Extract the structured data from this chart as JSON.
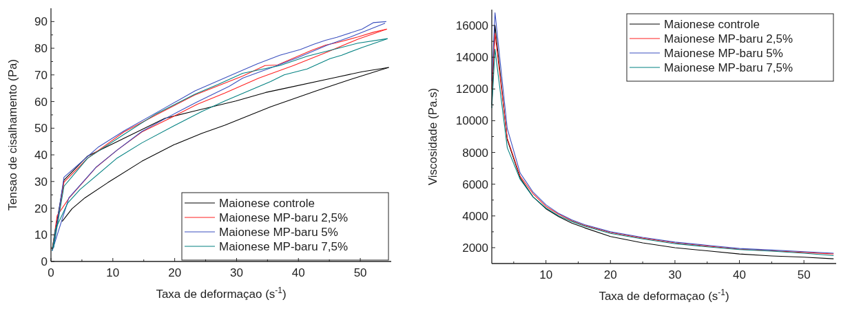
{
  "chart_data": [
    {
      "type": "line",
      "xlabel": "Taxa de deformaçao (s$^{-1}$)",
      "ylabel": "Tensao de cisalhamento (Pa)",
      "xlim": [
        0,
        55
      ],
      "ylim": [
        0,
        95
      ],
      "xticks": [
        0,
        {
          "value": 5,
          "label": null
        },
        10,
        {
          "value": 15,
          "label": null
        },
        20,
        {
          "value": 25,
          "label": null
        },
        30,
        {
          "value": 35,
          "label": null
        },
        40,
        {
          "value": 45,
          "label": null
        },
        50
      ],
      "yticks": [
        0,
        {
          "value": 5,
          "label": null
        },
        10,
        {
          "value": 15,
          "label": null
        },
        20,
        {
          "value": 25,
          "label": null
        },
        30,
        {
          "value": 35,
          "label": null
        },
        40,
        {
          "value": 45,
          "label": null
        },
        50,
        {
          "value": 55,
          "label": null
        },
        60,
        {
          "value": 65,
          "label": null
        },
        70,
        {
          "value": 75,
          "label": null
        },
        80,
        {
          "value": 85,
          "label": null
        },
        90
      ],
      "legend": "bottom right",
      "grid": false,
      "line_style": "solid",
      "series": [
        {
          "name": "Maionese controle",
          "color": "#000000",
          "x": [
            1.8,
            3.4,
            5.5,
            9.2,
            14.7,
            19.9,
            24.4,
            28.1,
            35.5,
            42.9,
            48.4,
            54.6
          ],
          "values": [
            15.0,
            19.8,
            23.9,
            29.6,
            37.6,
            43.8,
            48.1,
            51.1,
            58.0,
            64.0,
            68.3,
            72.8
          ]
        },
        {
          "color": "#000000",
          "x": [
            0.2,
            2.1,
            5.9,
            11.8,
            18.4,
            22.9,
            29.9,
            34.7,
            37.7,
            45.9,
            50.3,
            54.6
          ],
          "values": [
            4.7,
            30.5,
            39.5,
            46.2,
            53.7,
            56.3,
            60.2,
            63.4,
            64.9,
            69.0,
            71.2,
            72.8
          ]
        },
        {
          "name": "Maionese MP-baru 2,5%",
          "color": "#ff2020",
          "x": [
            0.2,
            1.0,
            2.9,
            7.3,
            10.7,
            14.7,
            19.2,
            23.6,
            28.1,
            33.6,
            39.2,
            44.7,
            49.6,
            54.3
          ],
          "values": [
            4.5,
            17.2,
            23.7,
            35.3,
            41.8,
            48.6,
            53.7,
            58.9,
            63.2,
            68.8,
            73.5,
            78.6,
            83.4,
            87.2
          ]
        },
        {
          "color": "#ff2020",
          "x": [
            0.4,
            2.1,
            5.9,
            11.8,
            17.0,
            23.2,
            31.0,
            34.6,
            36.6,
            42.1,
            44.4,
            46.2,
            49.6,
            52.1,
            54.3
          ],
          "values": [
            5.5,
            29.7,
            38.7,
            48.6,
            55.0,
            62.4,
            69.6,
            73.5,
            73.7,
            79.2,
            81.2,
            82.1,
            84.2,
            86.0,
            87.2
          ]
        },
        {
          "name": "Maionese MP-baru 5%",
          "color": "#3a4fbf",
          "x": [
            0.2,
            2.9,
            7.3,
            10.7,
            14.7,
            19.2,
            23.6,
            28.8,
            31.0,
            35.5,
            39.9,
            44.7,
            48.4,
            54.0
          ],
          "values": [
            4.0,
            23.9,
            35.4,
            41.8,
            48.8,
            54.5,
            59.8,
            65.7,
            68.8,
            72.6,
            76.5,
            81.2,
            84.2,
            89.4
          ]
        },
        {
          "color": "#3a4fbf",
          "x": [
            0.4,
            2.1,
            7.7,
            11.8,
            18.4,
            23.3,
            28.8,
            33.3,
            37.0,
            40.3,
            42.5,
            44.4,
            46.2,
            50.3,
            52.1,
            54.2
          ],
          "values": [
            5.2,
            31.6,
            43.0,
            49.0,
            57.6,
            64.0,
            69.6,
            74.1,
            77.4,
            79.5,
            81.5,
            83.0,
            84.1,
            87.2,
            89.6,
            90.0
          ]
        },
        {
          "name": "Maionese MP-baru 7,5%",
          "color": "#008080",
          "x": [
            0.2,
            0.7,
            2.7,
            4.7,
            10.7,
            14.7,
            19.9,
            24.4,
            28.1,
            35.5,
            37.7,
            41.4,
            45.1,
            47.0,
            50.3,
            54.4
          ],
          "values": [
            4.0,
            12.0,
            21.9,
            27.0,
            38.8,
            44.5,
            50.9,
            56.3,
            60.2,
            67.5,
            70.0,
            72.2,
            76.1,
            77.4,
            80.3,
            83.6
          ]
        },
        {
          "color": "#008080",
          "x": [
            0.4,
            2.1,
            5.9,
            11.8,
            17.0,
            23.3,
            27.0,
            31.0,
            37.0,
            41.4,
            46.6,
            49.6,
            54.4
          ],
          "values": [
            5.0,
            28.2,
            38.7,
            47.7,
            55.4,
            62.8,
            66.4,
            70.6,
            73.5,
            77.0,
            80.1,
            81.9,
            83.6
          ]
        }
      ]
    },
    {
      "type": "line",
      "xlabel": "Taxa de deformaçao (s$^{-1}$)",
      "ylabel": "Viscosidade (Pa.s)",
      "xlim": [
        1.6,
        55
      ],
      "ylim": [
        1000,
        17000
      ],
      "xticks": [
        {
          "value": 5,
          "label": null
        },
        10,
        {
          "value": 15,
          "label": null
        },
        20,
        {
          "value": 25,
          "label": null
        },
        30,
        {
          "value": 35,
          "label": null
        },
        40,
        {
          "value": 45,
          "label": null
        },
        50
      ],
      "yticks": [
        2000,
        {
          "value": 3000,
          "label": null
        },
        4000,
        {
          "value": 5000,
          "label": null
        },
        6000,
        {
          "value": 7000,
          "label": null
        },
        8000,
        {
          "value": 9000,
          "label": null
        },
        10000,
        {
          "value": 11000,
          "label": null
        },
        12000,
        {
          "value": 13000,
          "label": null
        },
        14000,
        {
          "value": 15000,
          "label": null
        },
        16000
      ],
      "legend": "top right",
      "grid": false,
      "line_style": "solid",
      "x": [
        1.6,
        2.1,
        4,
        6,
        8,
        10,
        12,
        14,
        16,
        20,
        25,
        30,
        35,
        40,
        45,
        50,
        54.6
      ],
      "series": [
        {
          "name": "Maionese controle",
          "color": "#000000",
          "values": [
            11000,
            16000,
            8800,
            6400,
            5200,
            4450,
            3950,
            3550,
            3250,
            2700,
            2300,
            2000,
            1800,
            1600,
            1480,
            1400,
            1300
          ]
        },
        {
          "name": "Maionese MP-baru 2,5%",
          "color": "#ff2020",
          "values": [
            12000,
            15500,
            8900,
            6500,
            5400,
            4600,
            4100,
            3700,
            3400,
            2950,
            2600,
            2300,
            2100,
            1900,
            1800,
            1700,
            1600
          ]
        },
        {
          "name": "Maionese MP-baru 5%",
          "color": "#3a4fbf",
          "values": [
            12500,
            16800,
            9500,
            6700,
            5500,
            4700,
            4150,
            3750,
            3450,
            3000,
            2650,
            2350,
            2150,
            1950,
            1850,
            1750,
            1650
          ]
        },
        {
          "name": "Maionese MP-baru 7,5%",
          "color": "#008080",
          "values": [
            10800,
            14500,
            8300,
            6300,
            5200,
            4500,
            4000,
            3650,
            3350,
            2900,
            2550,
            2250,
            2050,
            1880,
            1780,
            1650,
            1500
          ]
        }
      ]
    }
  ]
}
